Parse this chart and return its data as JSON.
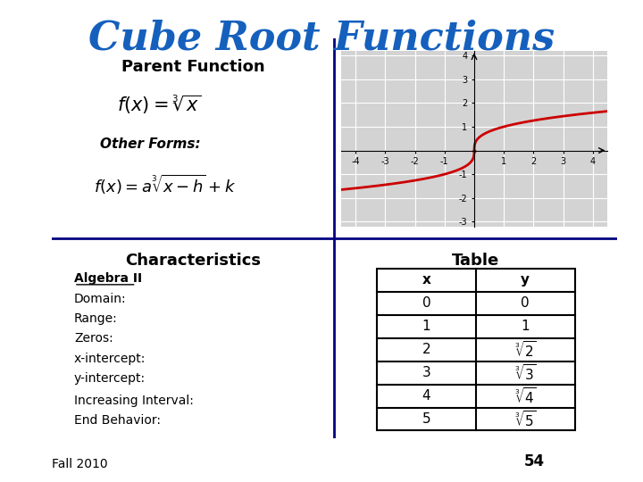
{
  "title": "Cube Root Functions",
  "title_color": "#1560BD",
  "title_fontsize": 32,
  "bg_color": "#ADD8E6",
  "outer_bg": "#FFFFFF",
  "panel_bg": "#ADD8E6",
  "graph_bg": "#D3D3D3",
  "footer_text": "Fall 2010",
  "footer_num": "54",
  "quadrant_top_left_title": "Parent Function",
  "quadrant_bot_left_title": "Characteristics",
  "quadrant_bot_right_title": "Table",
  "characteristics_items": [
    "Algebra II",
    "Domain:",
    "Range:",
    "Zeros:",
    "x-intercept:",
    "y-intercept:",
    "Increasing Interval:",
    "End Behavior:"
  ],
  "table_x": [
    "x",
    "0",
    "1",
    "2",
    "3",
    "4",
    "5"
  ],
  "table_y_labels": [
    "y",
    "0",
    "1",
    "$\\sqrt[3]{2}$",
    "$\\sqrt[3]{3}$",
    "$\\sqrt[3]{4}$",
    "$\\sqrt[3]{5}$"
  ],
  "curve_color": "#CC0000",
  "graph_xlim": [
    -4.5,
    4.5
  ],
  "graph_ylim": [
    -3.2,
    4.2
  ],
  "graph_xticks": [
    -4,
    -3,
    -2,
    -1,
    0,
    1,
    2,
    3,
    4
  ],
  "graph_yticks": [
    -3,
    -2,
    -1,
    0,
    1,
    2,
    3,
    4
  ]
}
